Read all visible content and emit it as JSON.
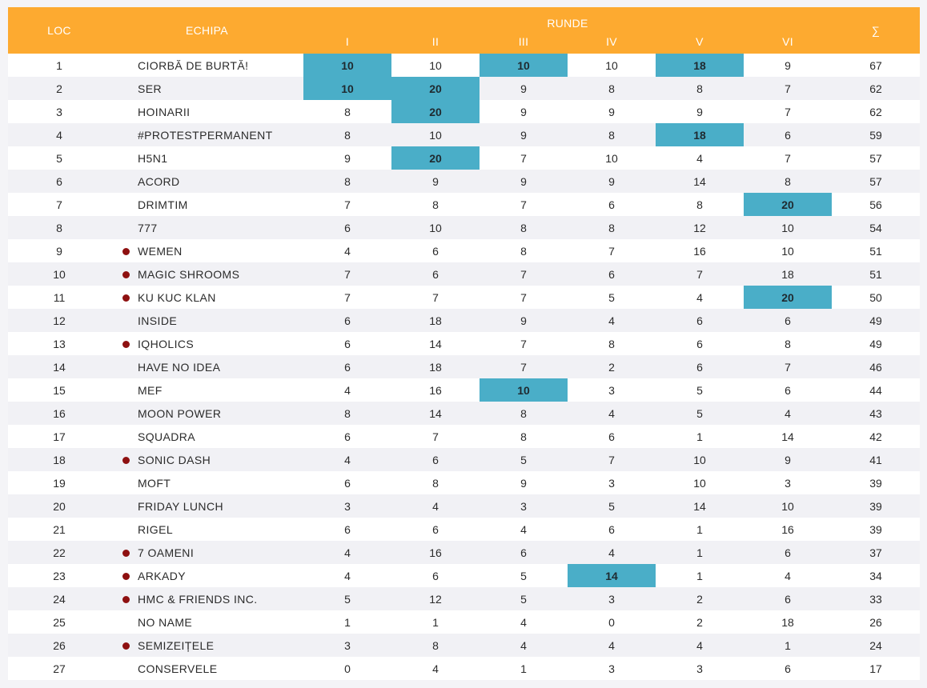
{
  "header": {
    "loc": "LOC",
    "team": "ECHIPA",
    "rounds_label": "RUNDE",
    "rounds": [
      "I",
      "II",
      "III",
      "IV",
      "V",
      "VI"
    ],
    "total": "∑"
  },
  "colors": {
    "header_bg": "#fdaa30",
    "highlight": "#4aaec8",
    "dot": "#8e1010",
    "row_alt": "#f1f1f5"
  },
  "rows": [
    {
      "place": "1",
      "team": "CIORBĂ DE BURTĂ!",
      "marked": false,
      "scores": [
        10,
        10,
        10,
        10,
        18,
        9
      ],
      "highlights": [
        true,
        false,
        true,
        false,
        true,
        false
      ],
      "total": 67
    },
    {
      "place": "2",
      "team": "SER",
      "marked": false,
      "scores": [
        10,
        20,
        9,
        8,
        8,
        7
      ],
      "highlights": [
        true,
        true,
        false,
        false,
        false,
        false
      ],
      "total": 62
    },
    {
      "place": "3",
      "team": "HOINARII",
      "marked": false,
      "scores": [
        8,
        20,
        9,
        9,
        9,
        7
      ],
      "highlights": [
        false,
        true,
        false,
        false,
        false,
        false
      ],
      "total": 62
    },
    {
      "place": "4",
      "team": "#PROTESTPERMANENT",
      "marked": false,
      "scores": [
        8,
        10,
        9,
        8,
        18,
        6
      ],
      "highlights": [
        false,
        false,
        false,
        false,
        true,
        false
      ],
      "total": 59
    },
    {
      "place": "5",
      "team": "H5N1",
      "marked": false,
      "scores": [
        9,
        20,
        7,
        10,
        4,
        7
      ],
      "highlights": [
        false,
        true,
        false,
        false,
        false,
        false
      ],
      "total": 57
    },
    {
      "place": "6",
      "team": "ACORD",
      "marked": false,
      "scores": [
        8,
        9,
        9,
        9,
        14,
        8
      ],
      "highlights": [
        false,
        false,
        false,
        false,
        false,
        false
      ],
      "total": 57
    },
    {
      "place": "7",
      "team": "DRIMTIM",
      "marked": false,
      "scores": [
        7,
        8,
        7,
        6,
        8,
        20
      ],
      "highlights": [
        false,
        false,
        false,
        false,
        false,
        true
      ],
      "total": 56
    },
    {
      "place": "8",
      "team": "777",
      "marked": false,
      "scores": [
        6,
        10,
        8,
        8,
        12,
        10
      ],
      "highlights": [
        false,
        false,
        false,
        false,
        false,
        false
      ],
      "total": 54
    },
    {
      "place": "9",
      "team": "WEMEN",
      "marked": true,
      "scores": [
        4,
        6,
        8,
        7,
        16,
        10
      ],
      "highlights": [
        false,
        false,
        false,
        false,
        false,
        false
      ],
      "total": 51
    },
    {
      "place": "10",
      "team": "MAGIC SHROOMS",
      "marked": true,
      "scores": [
        7,
        6,
        7,
        6,
        7,
        18
      ],
      "highlights": [
        false,
        false,
        false,
        false,
        false,
        false
      ],
      "total": 51
    },
    {
      "place": "11",
      "team": "KU KUC KLAN",
      "marked": true,
      "scores": [
        7,
        7,
        7,
        5,
        4,
        20
      ],
      "highlights": [
        false,
        false,
        false,
        false,
        false,
        true
      ],
      "total": 50
    },
    {
      "place": "12",
      "team": "INSIDE",
      "marked": false,
      "scores": [
        6,
        18,
        9,
        4,
        6,
        6
      ],
      "highlights": [
        false,
        false,
        false,
        false,
        false,
        false
      ],
      "total": 49
    },
    {
      "place": "13",
      "team": "IQHOLICS",
      "marked": true,
      "scores": [
        6,
        14,
        7,
        8,
        6,
        8
      ],
      "highlights": [
        false,
        false,
        false,
        false,
        false,
        false
      ],
      "total": 49
    },
    {
      "place": "14",
      "team": "HAVE NO IDEA",
      "marked": false,
      "scores": [
        6,
        18,
        7,
        2,
        6,
        7
      ],
      "highlights": [
        false,
        false,
        false,
        false,
        false,
        false
      ],
      "total": 46
    },
    {
      "place": "15",
      "team": "MEF",
      "marked": false,
      "scores": [
        4,
        16,
        10,
        3,
        5,
        6
      ],
      "highlights": [
        false,
        false,
        true,
        false,
        false,
        false
      ],
      "total": 44
    },
    {
      "place": "16",
      "team": "MOON POWER",
      "marked": false,
      "scores": [
        8,
        14,
        8,
        4,
        5,
        4
      ],
      "highlights": [
        false,
        false,
        false,
        false,
        false,
        false
      ],
      "total": 43
    },
    {
      "place": "17",
      "team": "SQUADRA",
      "marked": false,
      "scores": [
        6,
        7,
        8,
        6,
        1,
        14
      ],
      "highlights": [
        false,
        false,
        false,
        false,
        false,
        false
      ],
      "total": 42
    },
    {
      "place": "18",
      "team": "SONIC DASH",
      "marked": true,
      "scores": [
        4,
        6,
        5,
        7,
        10,
        9
      ],
      "highlights": [
        false,
        false,
        false,
        false,
        false,
        false
      ],
      "total": 41
    },
    {
      "place": "19",
      "team": "MOFT",
      "marked": false,
      "scores": [
        6,
        8,
        9,
        3,
        10,
        3
      ],
      "highlights": [
        false,
        false,
        false,
        false,
        false,
        false
      ],
      "total": 39
    },
    {
      "place": "20",
      "team": "FRIDAY LUNCH",
      "marked": false,
      "scores": [
        3,
        4,
        3,
        5,
        14,
        10
      ],
      "highlights": [
        false,
        false,
        false,
        false,
        false,
        false
      ],
      "total": 39
    },
    {
      "place": "21",
      "team": "RIGEL",
      "marked": false,
      "scores": [
        6,
        6,
        4,
        6,
        1,
        16
      ],
      "highlights": [
        false,
        false,
        false,
        false,
        false,
        false
      ],
      "total": 39
    },
    {
      "place": "22",
      "team": "7 OAMENI",
      "marked": true,
      "scores": [
        4,
        16,
        6,
        4,
        1,
        6
      ],
      "highlights": [
        false,
        false,
        false,
        false,
        false,
        false
      ],
      "total": 37
    },
    {
      "place": "23",
      "team": "ARKADY",
      "marked": true,
      "scores": [
        4,
        6,
        5,
        14,
        1,
        4
      ],
      "highlights": [
        false,
        false,
        false,
        true,
        false,
        false
      ],
      "total": 34
    },
    {
      "place": "24",
      "team": "HMC & FRIENDS INC.",
      "marked": true,
      "scores": [
        5,
        12,
        5,
        3,
        2,
        6
      ],
      "highlights": [
        false,
        false,
        false,
        false,
        false,
        false
      ],
      "total": 33
    },
    {
      "place": "25",
      "team": "NO NAME",
      "marked": false,
      "scores": [
        1,
        1,
        4,
        0,
        2,
        18
      ],
      "highlights": [
        false,
        false,
        false,
        false,
        false,
        false
      ],
      "total": 26
    },
    {
      "place": "26",
      "team": "SEMIZEIȚELE",
      "marked": true,
      "scores": [
        3,
        8,
        4,
        4,
        4,
        1
      ],
      "highlights": [
        false,
        false,
        false,
        false,
        false,
        false
      ],
      "total": 24
    },
    {
      "place": "27",
      "team": "CONSERVELE",
      "marked": false,
      "scores": [
        0,
        4,
        1,
        3,
        3,
        6
      ],
      "highlights": [
        false,
        false,
        false,
        false,
        false,
        false
      ],
      "total": 17
    }
  ]
}
